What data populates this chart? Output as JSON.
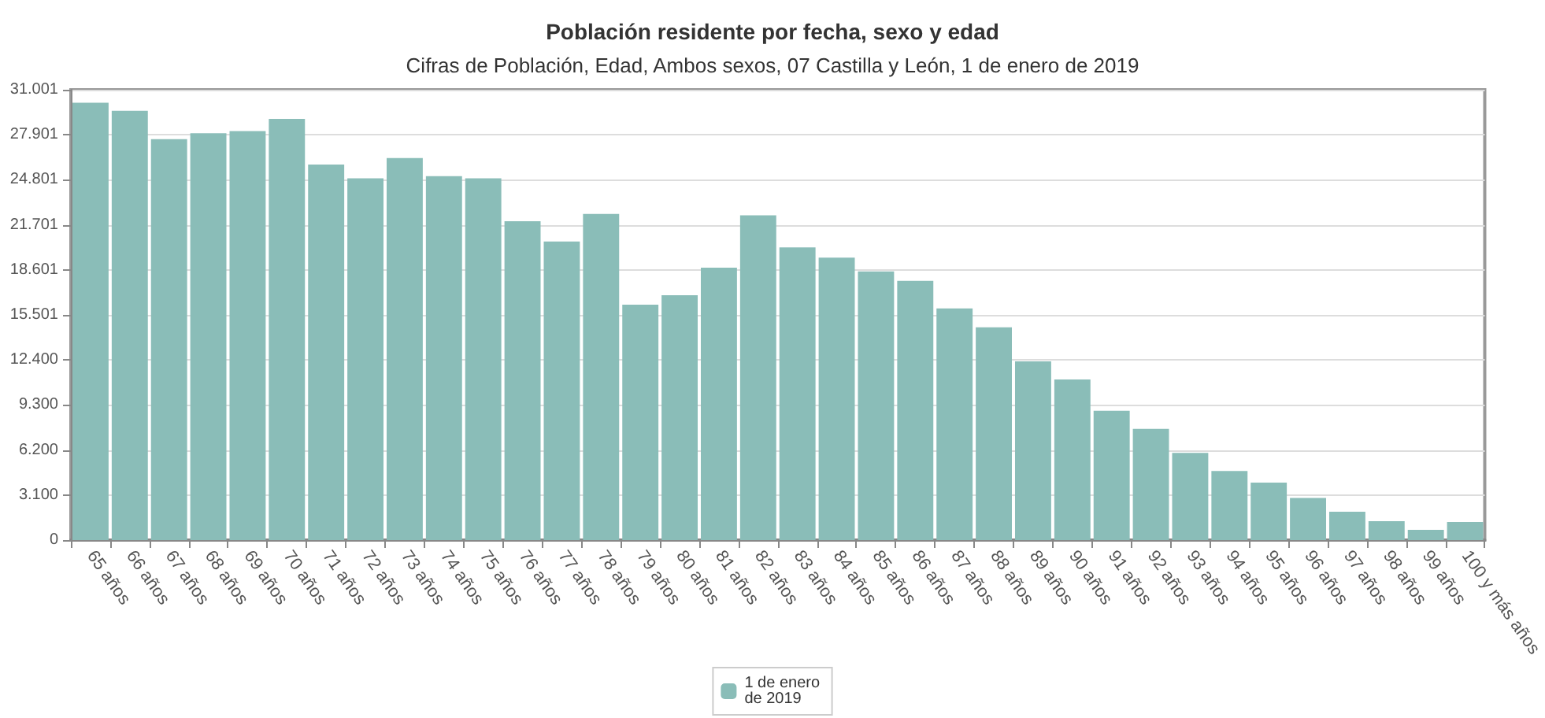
{
  "chart_data": {
    "type": "bar",
    "title": "Población residente por fecha, sexo y edad",
    "subtitle": "Cifras de Población, Edad, Ambos sexos, 07 Castilla y León, 1 de enero de 2019",
    "categories": [
      "65 años",
      "66 años",
      "67 años",
      "68 años",
      "69 años",
      "70 años",
      "71 años",
      "72 años",
      "73 años",
      "74 años",
      "75 años",
      "76 años",
      "77 años",
      "78 años",
      "79 años",
      "80 años",
      "81 años",
      "82 años",
      "83 años",
      "84 años",
      "85 años",
      "86 años",
      "87 años",
      "88 años",
      "89 años",
      "90 años",
      "91 años",
      "92 años",
      "93 años",
      "94 años",
      "95 años",
      "96 años",
      "97 años",
      "98 años",
      "99 años",
      "100 y más años"
    ],
    "series": [
      {
        "name": "1 de enero de 2019",
        "color": "#8abdb8",
        "values": [
          30100,
          29550,
          27600,
          28000,
          28150,
          29000,
          25850,
          24900,
          26300,
          25050,
          24900,
          21950,
          20550,
          22450,
          16200,
          16850,
          18750,
          22350,
          20150,
          19450,
          18500,
          17850,
          15950,
          14650,
          12300,
          11050,
          8900,
          7650,
          6000,
          4750,
          3950,
          2900,
          1950,
          1300,
          700,
          1250
        ]
      }
    ],
    "ylim": [
      0,
      31001
    ],
    "yticks": [
      {
        "value": 0,
        "label": "0"
      },
      {
        "value": 3100,
        "label": "3.100"
      },
      {
        "value": 6200,
        "label": "6.200"
      },
      {
        "value": 9300,
        "label": "9.300"
      },
      {
        "value": 12400,
        "label": "12.400"
      },
      {
        "value": 15501,
        "label": "15.501"
      },
      {
        "value": 18601,
        "label": "18.601"
      },
      {
        "value": 21701,
        "label": "21.701"
      },
      {
        "value": 24801,
        "label": "24.801"
      },
      {
        "value": 27901,
        "label": "27.901"
      },
      {
        "value": 31001,
        "label": "31.001"
      }
    ],
    "grid": "y",
    "legend": "bottom"
  }
}
